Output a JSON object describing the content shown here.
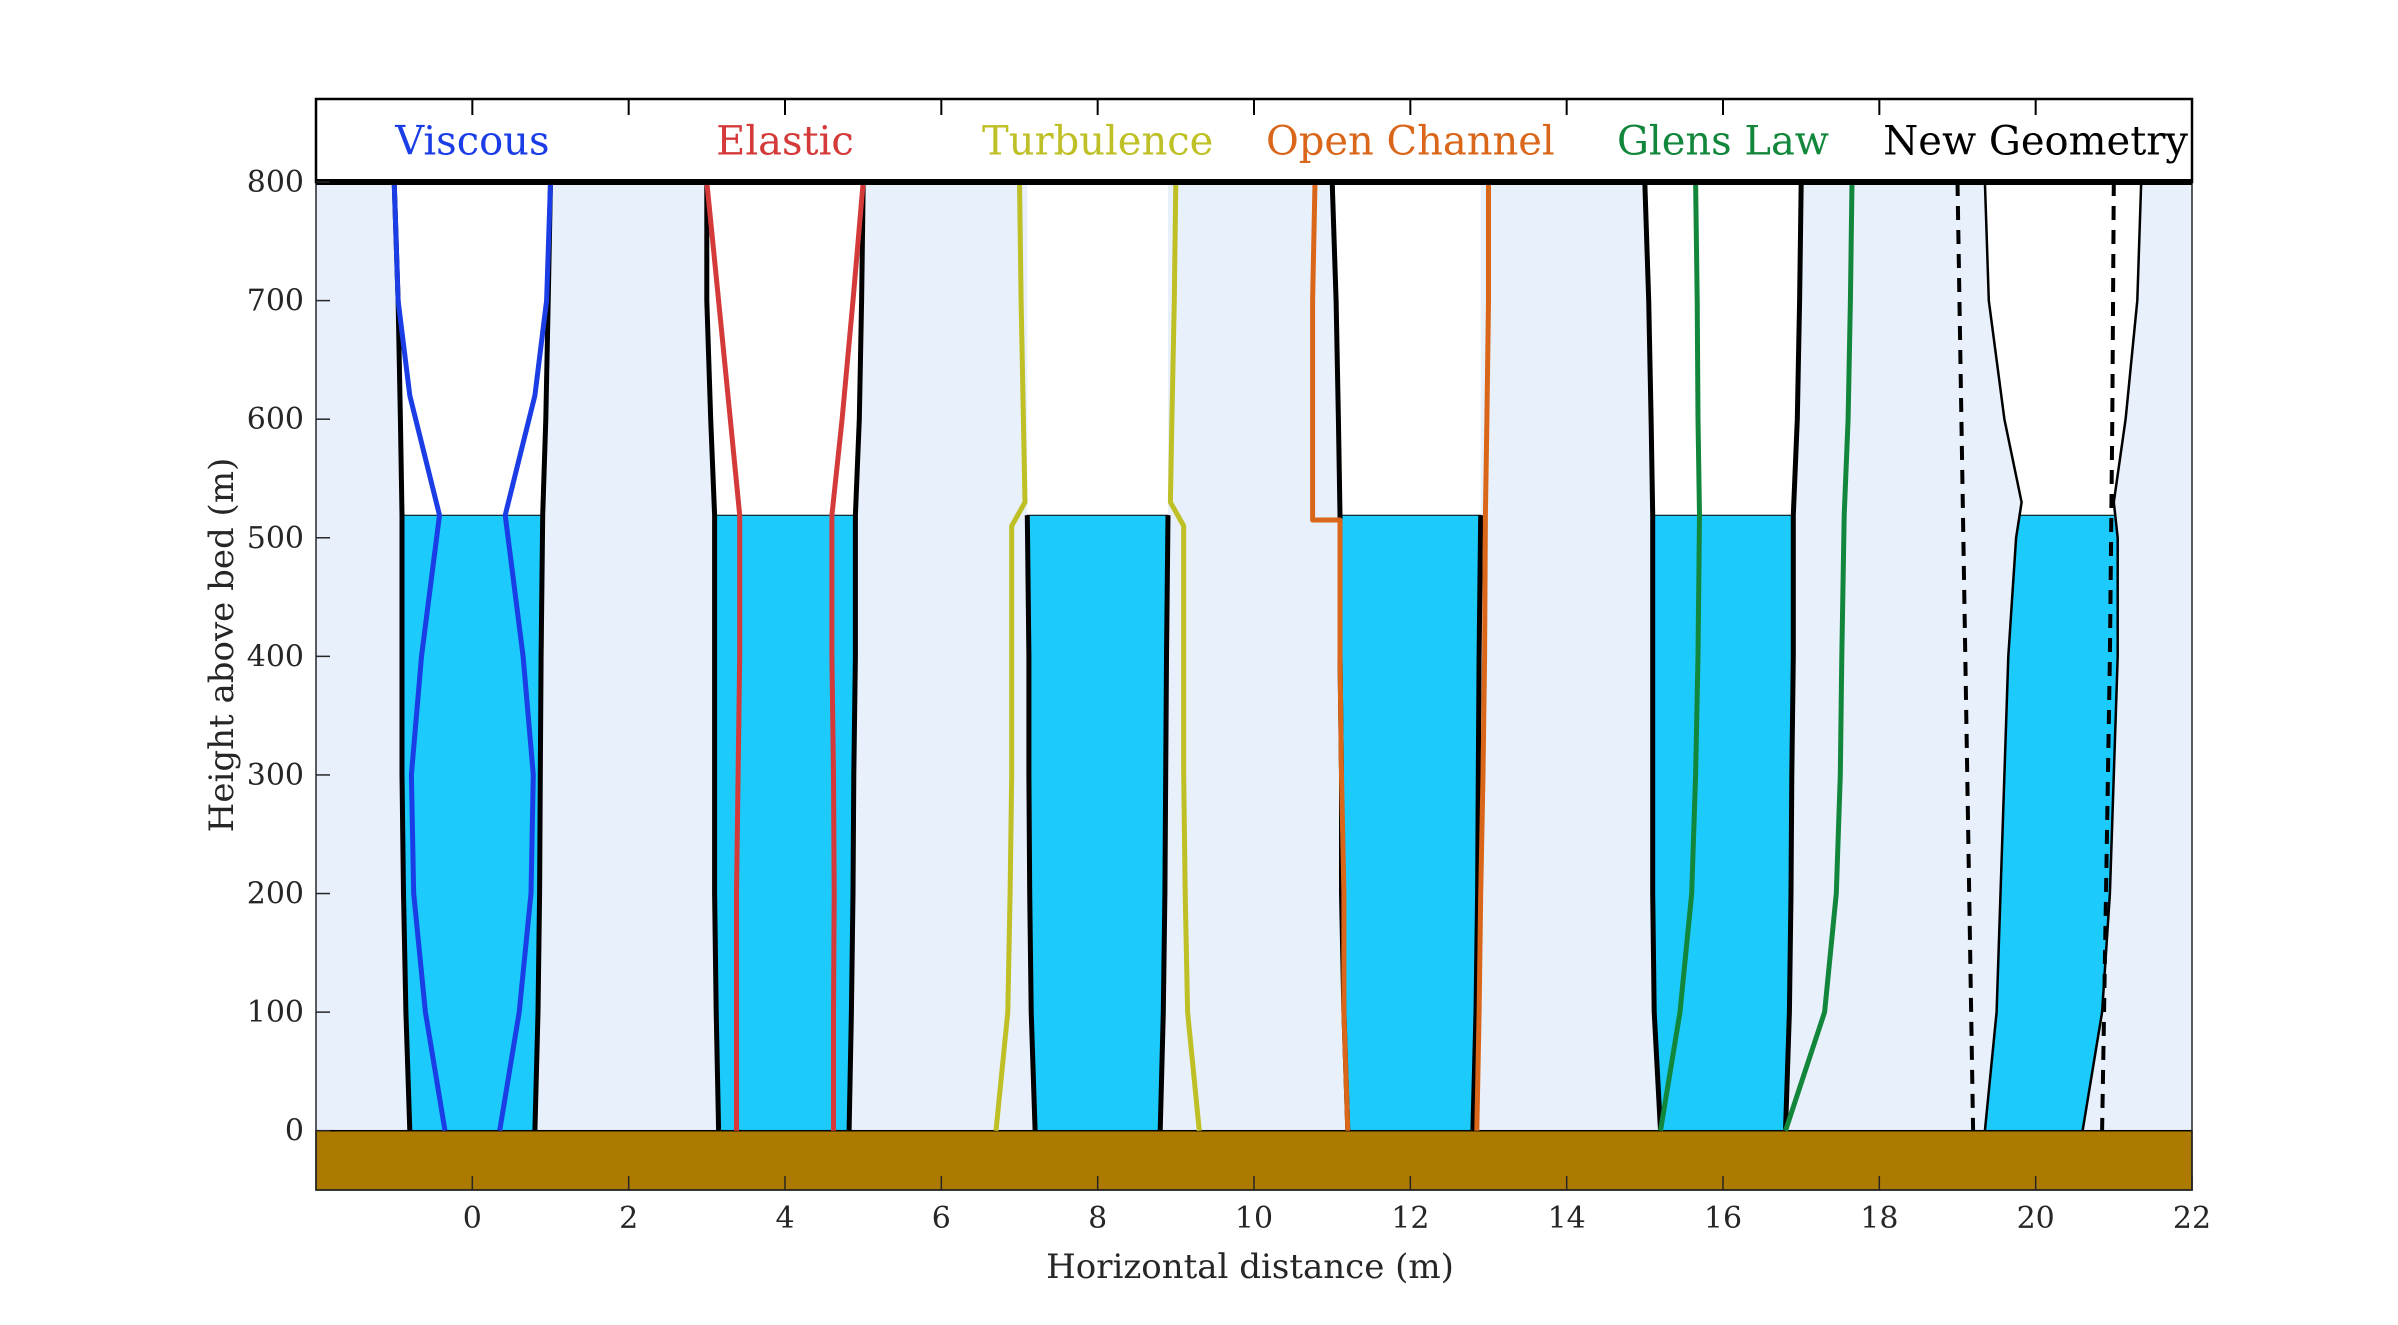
{
  "chart_data": {
    "type": "line",
    "xlabel": "Horizontal distance (m)",
    "ylabel": "Height above bed (m)",
    "xlim": [
      -2,
      22
    ],
    "ylim": [
      -50,
      870
    ],
    "plot_ylim": [
      -50,
      800
    ],
    "x_ticks": [
      0,
      2,
      4,
      6,
      8,
      10,
      12,
      14,
      16,
      18,
      20,
      22
    ],
    "y_ticks": [
      0,
      100,
      200,
      300,
      400,
      500,
      600,
      700,
      800
    ],
    "header_ticks": [
      0,
      2,
      4,
      6,
      8,
      10,
      12,
      14,
      16,
      18,
      20
    ],
    "grid": false,
    "colors": {
      "ice_background": "#e8f0fc",
      "water_fill": "#1ccafb",
      "bed": "#ad7a00",
      "wall": "#000000"
    },
    "water_level": 519,
    "bed_bottom": -50,
    "panels": [
      {
        "name": "Viscous",
        "color": "#1a3de6",
        "center": 0,
        "wall_left": [
          [
            -1.0,
            800
          ],
          [
            -0.95,
            700
          ],
          [
            -0.92,
            600
          ],
          [
            -0.9,
            519
          ],
          [
            -0.9,
            400
          ],
          [
            -0.9,
            300
          ],
          [
            -0.88,
            200
          ],
          [
            -0.85,
            100
          ],
          [
            -0.8,
            0
          ]
        ],
        "wall_right": [
          [
            1.0,
            800
          ],
          [
            0.97,
            700
          ],
          [
            0.94,
            600
          ],
          [
            0.9,
            519
          ],
          [
            0.88,
            400
          ],
          [
            0.87,
            300
          ],
          [
            0.86,
            200
          ],
          [
            0.84,
            100
          ],
          [
            0.8,
            0
          ]
        ],
        "series_left": [
          [
            -1.0,
            800
          ],
          [
            -0.95,
            700
          ],
          [
            -0.8,
            620
          ],
          [
            -0.42,
            519
          ],
          [
            -0.65,
            400
          ],
          [
            -0.78,
            300
          ],
          [
            -0.75,
            200
          ],
          [
            -0.6,
            100
          ],
          [
            -0.35,
            0
          ]
        ],
        "series_right": [
          [
            1.0,
            800
          ],
          [
            0.95,
            700
          ],
          [
            0.8,
            620
          ],
          [
            0.42,
            519
          ],
          [
            0.65,
            400
          ],
          [
            0.78,
            300
          ],
          [
            0.75,
            200
          ],
          [
            0.6,
            100
          ],
          [
            0.35,
            0
          ]
        ]
      },
      {
        "name": "Elastic",
        "color": "#d43a3a",
        "center": 4,
        "wall_left": [
          [
            3.0,
            800
          ],
          [
            3.0,
            700
          ],
          [
            3.05,
            600
          ],
          [
            3.1,
            519
          ],
          [
            3.1,
            400
          ],
          [
            3.1,
            300
          ],
          [
            3.1,
            200
          ],
          [
            3.12,
            100
          ],
          [
            3.15,
            0
          ]
        ],
        "wall_right": [
          [
            5.0,
            800
          ],
          [
            4.98,
            700
          ],
          [
            4.95,
            600
          ],
          [
            4.9,
            519
          ],
          [
            4.9,
            400
          ],
          [
            4.88,
            300
          ],
          [
            4.87,
            200
          ],
          [
            4.85,
            100
          ],
          [
            4.82,
            0
          ]
        ],
        "series_left": [
          [
            3.0,
            800
          ],
          [
            3.15,
            700
          ],
          [
            3.3,
            600
          ],
          [
            3.42,
            519
          ],
          [
            3.42,
            400
          ],
          [
            3.4,
            300
          ],
          [
            3.38,
            200
          ],
          [
            3.38,
            100
          ],
          [
            3.38,
            0
          ]
        ],
        "series_right": [
          [
            5.0,
            800
          ],
          [
            4.87,
            700
          ],
          [
            4.73,
            600
          ],
          [
            4.6,
            519
          ],
          [
            4.6,
            400
          ],
          [
            4.62,
            300
          ],
          [
            4.63,
            200
          ],
          [
            4.62,
            100
          ],
          [
            4.62,
            0
          ]
        ]
      },
      {
        "name": "Turbulence",
        "color": "#bfbf26",
        "center": 8,
        "wall_left": [
          [
            7.1,
            519
          ],
          [
            7.12,
            400
          ],
          [
            7.12,
            300
          ],
          [
            7.13,
            200
          ],
          [
            7.15,
            100
          ],
          [
            7.2,
            0
          ]
        ],
        "wall_right": [
          [
            8.9,
            519
          ],
          [
            8.88,
            400
          ],
          [
            8.87,
            300
          ],
          [
            8.86,
            200
          ],
          [
            8.84,
            100
          ],
          [
            8.8,
            0
          ]
        ],
        "series_left": [
          [
            7.0,
            800
          ],
          [
            7.02,
            700
          ],
          [
            7.05,
            600
          ],
          [
            7.07,
            530
          ],
          [
            6.9,
            510
          ],
          [
            6.9,
            400
          ],
          [
            6.9,
            300
          ],
          [
            6.88,
            200
          ],
          [
            6.85,
            100
          ],
          [
            6.7,
            0
          ]
        ],
        "series_right": [
          [
            9.0,
            800
          ],
          [
            8.98,
            700
          ],
          [
            8.95,
            600
          ],
          [
            8.93,
            530
          ],
          [
            9.1,
            510
          ],
          [
            9.1,
            400
          ],
          [
            9.1,
            300
          ],
          [
            9.12,
            200
          ],
          [
            9.15,
            100
          ],
          [
            9.3,
            0
          ]
        ]
      },
      {
        "name": "Open Channel",
        "color": "#d96619",
        "center": 12,
        "wall_left": [
          [
            11.0,
            800
          ],
          [
            11.05,
            700
          ],
          [
            11.08,
            600
          ],
          [
            11.1,
            519
          ],
          [
            11.1,
            400
          ],
          [
            11.12,
            300
          ],
          [
            11.12,
            200
          ],
          [
            11.15,
            100
          ],
          [
            11.2,
            0
          ]
        ],
        "wall_right": [
          [
            12.9,
            519
          ],
          [
            12.88,
            400
          ],
          [
            12.87,
            300
          ],
          [
            12.86,
            200
          ],
          [
            12.84,
            100
          ],
          [
            12.8,
            0
          ]
        ],
        "series_left": [
          [
            10.78,
            800
          ],
          [
            10.75,
            700
          ],
          [
            10.75,
            600
          ],
          [
            10.75,
            515
          ],
          [
            11.1,
            515
          ],
          [
            11.1,
            400
          ],
          [
            11.12,
            300
          ],
          [
            11.15,
            200
          ],
          [
            11.15,
            100
          ],
          [
            11.2,
            0
          ]
        ],
        "series_right": [
          [
            13.0,
            800
          ],
          [
            13.0,
            700
          ],
          [
            12.98,
            600
          ],
          [
            12.96,
            519
          ],
          [
            12.95,
            400
          ],
          [
            12.93,
            300
          ],
          [
            12.9,
            200
          ],
          [
            12.88,
            100
          ],
          [
            12.85,
            0
          ]
        ]
      },
      {
        "name": "Glens Law",
        "color": "#12873b",
        "center": 16,
        "wall_left": [
          [
            15.0,
            800
          ],
          [
            15.05,
            700
          ],
          [
            15.08,
            600
          ],
          [
            15.1,
            519
          ],
          [
            15.1,
            400
          ],
          [
            15.1,
            300
          ],
          [
            15.1,
            200
          ],
          [
            15.12,
            100
          ],
          [
            15.2,
            0
          ]
        ],
        "wall_right": [
          [
            17.0,
            800
          ],
          [
            16.98,
            700
          ],
          [
            16.95,
            600
          ],
          [
            16.9,
            519
          ],
          [
            16.9,
            400
          ],
          [
            16.88,
            300
          ],
          [
            16.87,
            200
          ],
          [
            16.85,
            100
          ],
          [
            16.8,
            0
          ]
        ],
        "series_left": [
          [
            15.65,
            800
          ],
          [
            15.67,
            700
          ],
          [
            15.68,
            600
          ],
          [
            15.7,
            519
          ],
          [
            15.68,
            400
          ],
          [
            15.65,
            300
          ],
          [
            15.6,
            200
          ],
          [
            15.45,
            100
          ],
          [
            15.2,
            0
          ]
        ],
        "series_right": [
          [
            17.65,
            800
          ],
          [
            17.63,
            700
          ],
          [
            17.6,
            600
          ],
          [
            17.55,
            519
          ],
          [
            17.52,
            400
          ],
          [
            17.5,
            300
          ],
          [
            17.45,
            200
          ],
          [
            17.3,
            100
          ],
          [
            16.8,
            0
          ]
        ]
      },
      {
        "name": "New Geometry",
        "color": "#000000",
        "center": 20,
        "wall_left": [
          [
            19.35,
            800
          ],
          [
            19.4,
            700
          ],
          [
            19.6,
            600
          ],
          [
            19.82,
            530
          ],
          [
            19.75,
            500
          ],
          [
            19.65,
            400
          ],
          [
            19.6,
            300
          ],
          [
            19.55,
            200
          ],
          [
            19.5,
            100
          ],
          [
            19.35,
            0
          ]
        ],
        "wall_right": [
          [
            21.35,
            800
          ],
          [
            21.3,
            700
          ],
          [
            21.15,
            600
          ],
          [
            21.0,
            530
          ],
          [
            21.05,
            500
          ],
          [
            21.05,
            400
          ],
          [
            21.0,
            300
          ],
          [
            20.95,
            200
          ],
          [
            20.85,
            100
          ],
          [
            20.6,
            0
          ]
        ],
        "series_left": [
          [
            19.0,
            800
          ],
          [
            19.05,
            600
          ],
          [
            19.1,
            400
          ],
          [
            19.15,
            200
          ],
          [
            19.2,
            0
          ]
        ],
        "series_right": [
          [
            21.0,
            800
          ],
          [
            20.98,
            600
          ],
          [
            20.95,
            400
          ],
          [
            20.9,
            200
          ],
          [
            20.85,
            0
          ]
        ]
      }
    ]
  }
}
